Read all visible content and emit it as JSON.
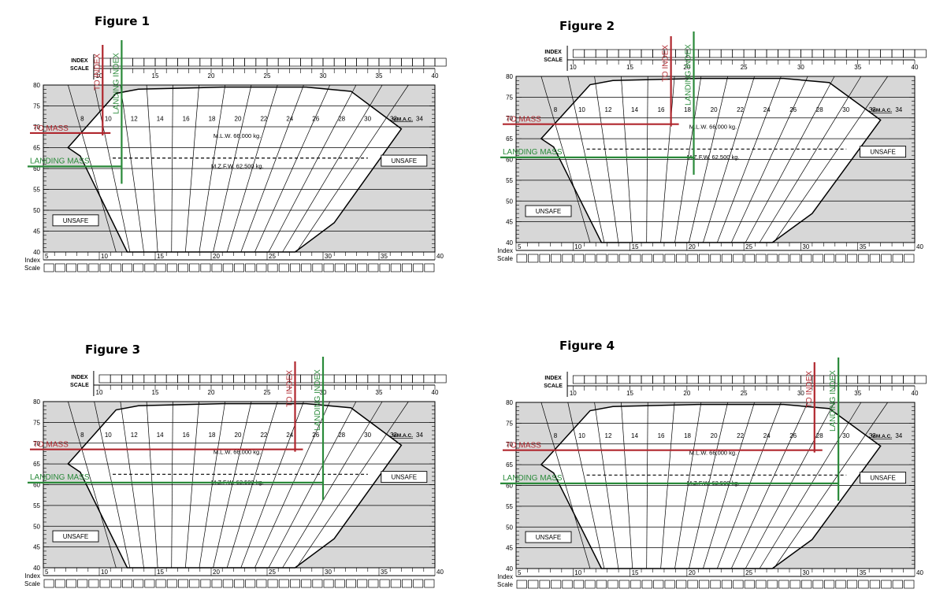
{
  "index_scale_label": [
    "INDEX",
    "SCALE"
  ],
  "index_ticks": [
    "10",
    "15",
    "20",
    "25",
    "30",
    "35",
    "40"
  ],
  "bottom_index_ticks": [
    "5",
    "10",
    "15",
    "20",
    "25",
    "30",
    "35",
    "40"
  ],
  "bottom_scale_label": [
    "Index",
    "Scale"
  ],
  "mass_ticks": [
    "80",
    "75",
    "70",
    "65",
    "60",
    "55",
    "50",
    "45",
    "40"
  ],
  "mac_labels": [
    "8",
    "10",
    "12",
    "14",
    "16",
    "18",
    "20",
    "22",
    "24",
    "26",
    "28",
    "30",
    "32",
    "34"
  ],
  "mac_unit": "%M.A.C.",
  "mlw_label": "M.L.W. 66,000 kg.",
  "mzfw_label": "M.Z.F.W. 62,500 kg.",
  "unsafe_label": "UNSAFE",
  "to_mass_label": "TO MASS",
  "landing_mass_label": "LANDING  MASS",
  "to_index_label": "TO INDEX",
  "landing_index_label": "LANDING INDEX",
  "colors": {
    "to_line": "#b0272e",
    "landing_line": "#2a8a3a",
    "unsafe_fill": "#d7d7d7"
  },
  "figures": [
    {
      "title": "Figure 1",
      "to_mass": 68.5,
      "landing_mass": 60.5,
      "to_index": 10.3,
      "landing_index": 12.0
    },
    {
      "title": "Figure 2",
      "to_mass": 68.5,
      "landing_mass": 60.5,
      "to_index": 18.6,
      "landing_index": 20.6
    },
    {
      "title": "Figure 3",
      "to_mass": 68.5,
      "landing_mass": 60.5,
      "to_index": 27.5,
      "landing_index": 30.0
    },
    {
      "title": "Figure 4",
      "to_mass": 68.5,
      "landing_mass": 60.5,
      "to_index": 31.2,
      "landing_index": 33.3
    }
  ]
}
